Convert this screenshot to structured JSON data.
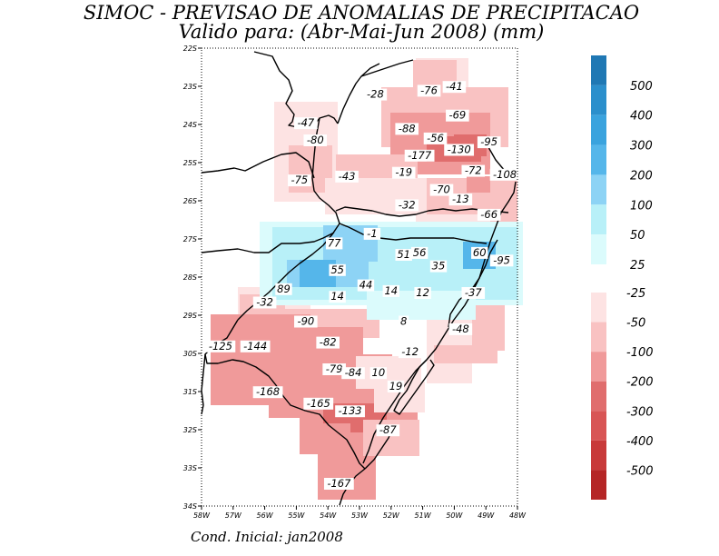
{
  "header": {
    "title_line1": "SIMOC - PREVISAO DE ANOMALIAS DE PRECIPITACAO",
    "title_line2": "Valido para: (Abr-Mai-Jun 2008) (mm)"
  },
  "footer": {
    "initial_condition": "Cond. Inicial: jan2008"
  },
  "map": {
    "lat_labels": [
      "22S",
      "23S",
      "24S",
      "25S",
      "26S",
      "27S",
      "28S",
      "29S",
      "30S",
      "31S",
      "32S",
      "33S",
      "34S"
    ],
    "lon_labels": [
      "58W",
      "57W",
      "56W",
      "55W",
      "54W",
      "53W",
      "52W",
      "51W",
      "50W",
      "49W",
      "48W"
    ]
  },
  "colorbar": {
    "positive": [
      {
        "label": "500",
        "color": "#1f78b4"
      },
      {
        "label": "400",
        "color": "#2b8fcc"
      },
      {
        "label": "300",
        "color": "#3aa3de"
      },
      {
        "label": "200",
        "color": "#55b6ea"
      },
      {
        "label": "100",
        "color": "#8dd3f5"
      },
      {
        "label": "50",
        "color": "#b8f0f8"
      },
      {
        "label": "25",
        "color": "#dbfbfc"
      }
    ],
    "negative": [
      {
        "label": "-25",
        "color": "#fde3e3"
      },
      {
        "label": "-50",
        "color": "#f9c2c2"
      },
      {
        "label": "-100",
        "color": "#f09a9a"
      },
      {
        "label": "-200",
        "color": "#e06d6d"
      },
      {
        "label": "-300",
        "color": "#d85555"
      },
      {
        "label": "-400",
        "color": "#c83a3a"
      },
      {
        "label": "-500",
        "color": "#b52626"
      }
    ]
  },
  "grid_values": [
    {
      "text": "-28",
      "lon": -52.5,
      "lat": -23.3
    },
    {
      "text": "-76",
      "lon": -50.8,
      "lat": -23.2
    },
    {
      "text": "-41",
      "lon": -50.0,
      "lat": -23.1
    },
    {
      "text": "-69",
      "lon": -49.9,
      "lat": -23.85
    },
    {
      "text": "-47",
      "lon": -54.7,
      "lat": -24.05
    },
    {
      "text": "-88",
      "lon": -51.5,
      "lat": -24.2
    },
    {
      "text": "-80",
      "lon": -54.4,
      "lat": -24.5
    },
    {
      "text": "-56",
      "lon": -50.6,
      "lat": -24.45
    },
    {
      "text": "-95",
      "lon": -48.9,
      "lat": -24.55
    },
    {
      "text": "-130",
      "lon": -49.85,
      "lat": -24.75
    },
    {
      "text": "-177",
      "lon": -51.1,
      "lat": -24.9
    },
    {
      "text": "-19",
      "lon": -51.6,
      "lat": -25.35
    },
    {
      "text": "-72",
      "lon": -49.4,
      "lat": -25.3
    },
    {
      "text": "-108",
      "lon": -48.4,
      "lat": -25.4
    },
    {
      "text": "-75",
      "lon": -54.9,
      "lat": -25.55
    },
    {
      "text": "-43",
      "lon": -53.4,
      "lat": -25.45
    },
    {
      "text": "-70",
      "lon": -50.4,
      "lat": -25.8
    },
    {
      "text": "-13",
      "lon": -49.8,
      "lat": -26.05
    },
    {
      "text": "-32",
      "lon": -51.5,
      "lat": -26.2
    },
    {
      "text": "-66",
      "lon": -48.9,
      "lat": -26.45
    },
    {
      "text": "-1",
      "lon": -52.6,
      "lat": -26.95
    },
    {
      "text": "77",
      "lon": -53.8,
      "lat": -27.2
    },
    {
      "text": "51",
      "lon": -51.6,
      "lat": -27.5
    },
    {
      "text": "56",
      "lon": -51.1,
      "lat": -27.45
    },
    {
      "text": "60",
      "lon": -49.2,
      "lat": -27.45
    },
    {
      "text": "-95",
      "lon": -48.5,
      "lat": -27.65
    },
    {
      "text": "55",
      "lon": -53.7,
      "lat": -27.9
    },
    {
      "text": "35",
      "lon": -50.5,
      "lat": -27.8
    },
    {
      "text": "89",
      "lon": -55.4,
      "lat": -28.4
    },
    {
      "text": "44",
      "lon": -52.8,
      "lat": -28.3
    },
    {
      "text": "14",
      "lon": -53.7,
      "lat": -28.6
    },
    {
      "text": "14",
      "lon": -52.0,
      "lat": -28.45
    },
    {
      "text": "12",
      "lon": -51.0,
      "lat": -28.5
    },
    {
      "text": "-37",
      "lon": -49.4,
      "lat": -28.5
    },
    {
      "text": "-32",
      "lon": -56.0,
      "lat": -28.75
    },
    {
      "text": "-90",
      "lon": -54.7,
      "lat": -29.25
    },
    {
      "text": "8",
      "lon": -51.6,
      "lat": -29.25
    },
    {
      "text": "-48",
      "lon": -49.8,
      "lat": -29.45
    },
    {
      "text": "-125",
      "lon": -57.4,
      "lat": -29.9
    },
    {
      "text": "-144",
      "lon": -56.3,
      "lat": -29.9
    },
    {
      "text": "-82",
      "lon": -54.0,
      "lat": -29.8
    },
    {
      "text": "-12",
      "lon": -51.4,
      "lat": -30.05
    },
    {
      "text": "-79",
      "lon": -53.8,
      "lat": -30.5
    },
    {
      "text": "-84",
      "lon": -53.2,
      "lat": -30.6
    },
    {
      "text": "10",
      "lon": -52.4,
      "lat": -30.6
    },
    {
      "text": "19",
      "lon": -51.85,
      "lat": -30.95
    },
    {
      "text": "-168",
      "lon": -55.9,
      "lat": -31.1
    },
    {
      "text": "-165",
      "lon": -54.3,
      "lat": -31.4
    },
    {
      "text": "-133",
      "lon": -53.3,
      "lat": -31.6
    },
    {
      "text": "-87",
      "lon": -52.1,
      "lat": -32.1
    },
    {
      "text": "-167",
      "lon": -53.65,
      "lat": -33.5
    }
  ]
}
